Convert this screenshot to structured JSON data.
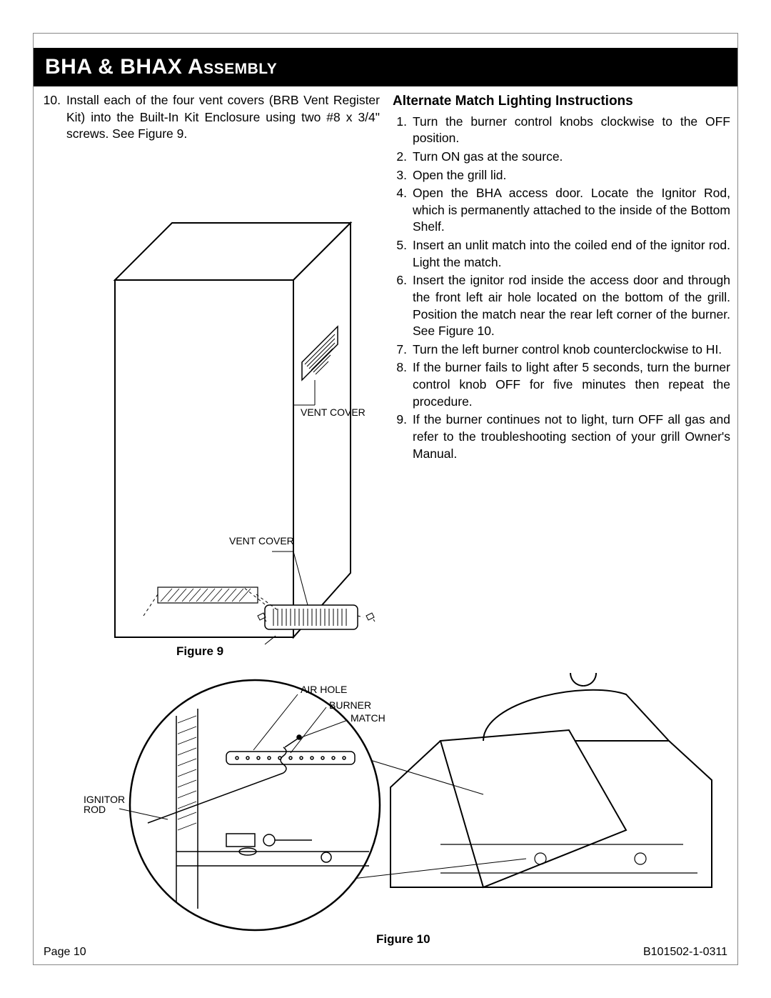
{
  "title": "BHA & BHAX Assembly",
  "left_step": {
    "number": "10.",
    "text": "Install each of the four vent covers (BRB Vent Register Kit) into the Built-In Kit Enclosure using two #8 x 3/4\" screws. See Figure 9."
  },
  "figure9": {
    "caption": "Figure 9",
    "labels": {
      "vent_cover_top": "VENT COVER",
      "vent_cover_bottom": "VENT COVER"
    }
  },
  "right_heading": "Alternate Match Lighting Instructions",
  "right_steps": [
    {
      "n": "1.",
      "t": "Turn the burner control knobs clockwise to the OFF position."
    },
    {
      "n": "2.",
      "t": "Turn ON gas at the source."
    },
    {
      "n": "3.",
      "t": "Open the grill lid."
    },
    {
      "n": "4.",
      "t": "Open the BHA access door. Locate the Ignitor Rod, which is permanently attached to the inside of the Bottom Shelf."
    },
    {
      "n": "5.",
      "t": "Insert an unlit match into the coiled end of the ignitor rod. Light the match."
    },
    {
      "n": "6.",
      "t": "Insert the ignitor rod inside the access door and through the front left air hole located on the bottom of the grill. Position the match near the rear left corner of the burner. See Figure 10."
    },
    {
      "n": "7.",
      "t": "Turn the left burner control knob counterclockwise to HI."
    },
    {
      "n": "8.",
      "t": "If the burner fails to light after 5 seconds, turn the burner control knob OFF for five minutes then repeat the procedure."
    },
    {
      "n": "9.",
      "t": "If the burner continues not to light, turn OFF all gas and refer to the troubleshooting section of your grill Owner's Manual."
    }
  ],
  "figure10": {
    "caption": "Figure 10",
    "labels": {
      "air_hole": "AIR HOLE",
      "burner": "BURNER",
      "match": "MATCH",
      "ignitor_rod": "IGNITOR\nROD"
    }
  },
  "footer": {
    "left": "Page 10",
    "right": "B101502-1-0311"
  },
  "colors": {
    "bar_bg": "#000000",
    "bar_text": "#ffffff",
    "page_bg": "#ffffff",
    "text": "#000000",
    "line": "#000000"
  }
}
